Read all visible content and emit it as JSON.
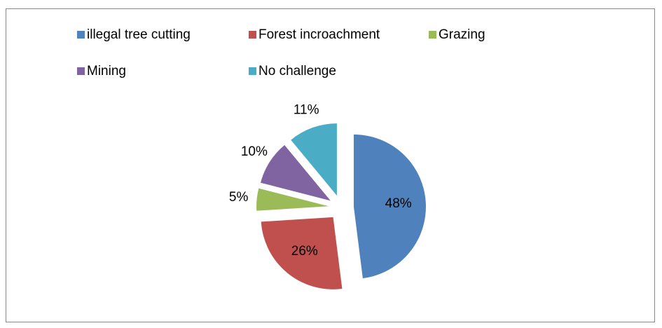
{
  "chart_data": {
    "type": "pie",
    "categories": [
      "illegal tree cutting",
      "Forest incroachment",
      "Grazing",
      "Mining",
      "No challenge"
    ],
    "values": [
      48,
      26,
      5,
      10,
      11
    ],
    "value_labels": [
      "48%",
      "26%",
      "5%",
      "10%",
      "11%"
    ],
    "colors": [
      "#4f81bd",
      "#c0504d",
      "#9bbb59",
      "#8064a2",
      "#4bacc6"
    ],
    "legend": "top",
    "exploded": true
  }
}
